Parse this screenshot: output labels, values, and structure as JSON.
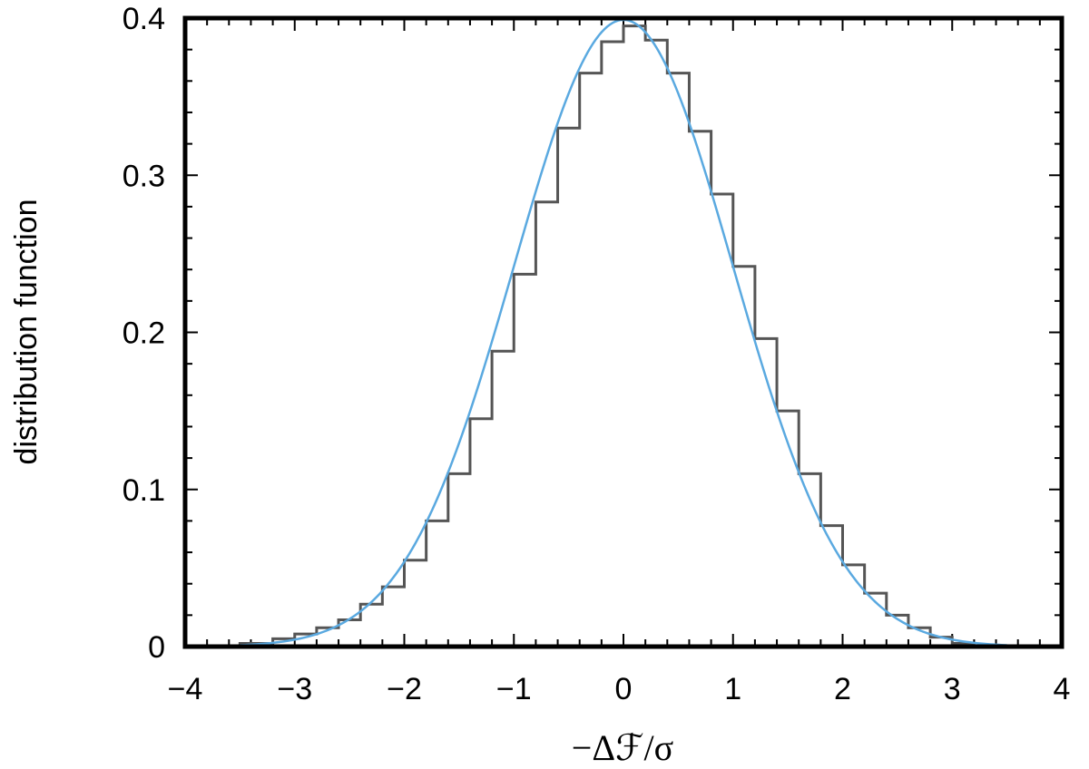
{
  "chart_data": {
    "type": "line",
    "title": "",
    "xlabel": "−Δℱ/σ",
    "ylabel": "distribution function",
    "xlim": [
      -4,
      4
    ],
    "ylim": [
      0,
      0.4
    ],
    "x_ticks": [
      -4,
      -3,
      -2,
      -1,
      0,
      1,
      2,
      3,
      4
    ],
    "x_tick_labels": [
      "−4",
      "−3",
      "−2",
      "−1",
      "0",
      "1",
      "2",
      "3",
      "4"
    ],
    "y_ticks": [
      0,
      0.1,
      0.2,
      0.3,
      0.4
    ],
    "y_tick_labels": [
      "0",
      "0.1",
      "0.2",
      "0.3",
      "0.4"
    ],
    "grid": false,
    "legend": "none",
    "series": [
      {
        "kind": "histogram-step",
        "color": "#555555",
        "x_edges": [
          -3.5,
          -3.2,
          -3.0,
          -2.8,
          -2.6,
          -2.4,
          -2.2,
          -2.0,
          -1.8,
          -1.6,
          -1.4,
          -1.2,
          -1.0,
          -0.8,
          -0.6,
          -0.4,
          -0.2,
          0.0,
          0.2,
          0.4,
          0.6,
          0.8,
          1.0,
          1.2,
          1.4,
          1.6,
          1.8,
          2.0,
          2.2,
          2.4,
          2.6,
          2.8,
          3.0,
          3.2
        ],
        "values": [
          0.002,
          0.005,
          0.008,
          0.012,
          0.017,
          0.027,
          0.038,
          0.055,
          0.08,
          0.11,
          0.145,
          0.188,
          0.237,
          0.283,
          0.33,
          0.365,
          0.385,
          0.395,
          0.386,
          0.365,
          0.328,
          0.288,
          0.242,
          0.196,
          0.15,
          0.11,
          0.077,
          0.052,
          0.034,
          0.02,
          0.012,
          0.006,
          0.002
        ]
      },
      {
        "kind": "curve",
        "color": "#5aa9e0",
        "function": "standard normal density",
        "x_range": [
          -3.5,
          3.5
        ]
      }
    ]
  }
}
